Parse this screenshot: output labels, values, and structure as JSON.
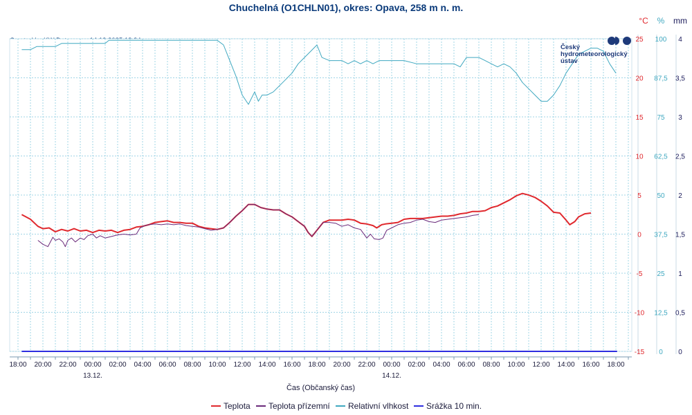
{
  "chart_data": {
    "type": "line",
    "title": "Chuchelná (O1CHLN01), okres: Opava, 258 m n. m.",
    "credit": "Created by KW Data s.r.o., 14.12.2025 18:24",
    "xlabel": "Čas (Občanský čas)",
    "x_ticks": [
      "18:00",
      "20:00",
      "22:00",
      "00:00",
      "02:00",
      "04:00",
      "06:00",
      "08:00",
      "10:00",
      "12:00",
      "14:00",
      "16:00",
      "18:00",
      "20:00",
      "22:00",
      "00:00",
      "02:00",
      "04:00",
      "06:00",
      "08:00",
      "10:00",
      "12:00",
      "14:00",
      "16:00",
      "18:00"
    ],
    "date_labels": [
      {
        "label": "13.12.",
        "hour": 6
      },
      {
        "label": "14.12.",
        "hour": 30
      }
    ],
    "x_range_hours": [
      0,
      49
    ],
    "axes": {
      "temperature": {
        "unit": "°C",
        "range": [
          -15,
          25
        ],
        "ticks": [
          25,
          20,
          15,
          10,
          5,
          0,
          -5,
          -10,
          -15
        ],
        "color": "#e0282d"
      },
      "humidity": {
        "unit": "%",
        "range": [
          0,
          100
        ],
        "ticks": [
          "100",
          "87,5",
          "75",
          "62,5",
          "50",
          "37,5",
          "25",
          "12,5",
          "0"
        ],
        "color": "#3fa8c0"
      },
      "precipitation": {
        "unit": "mm",
        "range": [
          0,
          4
        ],
        "ticks": [
          "4",
          "3,5",
          "3",
          "2,5",
          "2",
          "1,5",
          "1",
          "0,5",
          "0"
        ],
        "color": "#1a1a5a"
      }
    },
    "series": [
      {
        "name": "Teplota",
        "color": "#e0282d",
        "axis": "temperature",
        "points": [
          [
            0.3,
            2.5
          ],
          [
            1,
            1.9
          ],
          [
            1.6,
            1.0
          ],
          [
            2,
            0.7
          ],
          [
            2.5,
            0.8
          ],
          [
            3,
            0.3
          ],
          [
            3.5,
            0.6
          ],
          [
            4,
            0.4
          ],
          [
            4.5,
            0.7
          ],
          [
            5,
            0.4
          ],
          [
            5.5,
            0.5
          ],
          [
            6,
            0.2
          ],
          [
            6.5,
            0.5
          ],
          [
            7,
            0.4
          ],
          [
            7.5,
            0.5
          ],
          [
            8,
            0.2
          ],
          [
            8.5,
            0.5
          ],
          [
            9,
            0.6
          ],
          [
            9.5,
            0.9
          ],
          [
            10,
            1.0
          ],
          [
            10.5,
            1.2
          ],
          [
            11,
            1.5
          ],
          [
            11.5,
            1.6
          ],
          [
            12,
            1.7
          ],
          [
            12.5,
            1.5
          ],
          [
            13,
            1.5
          ],
          [
            13.5,
            1.4
          ],
          [
            14,
            1.4
          ],
          [
            14.5,
            1.0
          ],
          [
            15,
            0.8
          ],
          [
            15.5,
            0.7
          ],
          [
            16,
            0.6
          ],
          [
            16.5,
            0.8
          ],
          [
            17,
            1.5
          ],
          [
            17.5,
            2.3
          ],
          [
            18,
            3.0
          ],
          [
            18.5,
            3.8
          ],
          [
            19,
            3.8
          ],
          [
            19.5,
            3.4
          ],
          [
            20,
            3.2
          ],
          [
            20.5,
            3.1
          ],
          [
            21,
            3.1
          ],
          [
            21.5,
            2.6
          ],
          [
            22,
            2.2
          ],
          [
            22.5,
            1.6
          ],
          [
            23,
            1.0
          ],
          [
            23.3,
            0.2
          ],
          [
            23.6,
            -0.3
          ],
          [
            24,
            0.5
          ],
          [
            24.5,
            1.5
          ],
          [
            25,
            1.8
          ],
          [
            25.5,
            1.8
          ],
          [
            26,
            1.8
          ],
          [
            26.5,
            1.9
          ],
          [
            27,
            1.8
          ],
          [
            27.5,
            1.4
          ],
          [
            28,
            1.3
          ],
          [
            28.5,
            1.1
          ],
          [
            28.8,
            0.8
          ],
          [
            29.2,
            1.2
          ],
          [
            29.5,
            1.3
          ],
          [
            30,
            1.4
          ],
          [
            30.5,
            1.5
          ],
          [
            31,
            1.9
          ],
          [
            31.5,
            2.0
          ],
          [
            32,
            2.0
          ],
          [
            32.5,
            2.0
          ],
          [
            33,
            2.1
          ],
          [
            33.5,
            2.2
          ],
          [
            34,
            2.3
          ],
          [
            34.5,
            2.3
          ],
          [
            35,
            2.4
          ],
          [
            35.5,
            2.6
          ],
          [
            36,
            2.7
          ],
          [
            36.5,
            2.9
          ],
          [
            37,
            2.9
          ],
          [
            37.5,
            3.0
          ],
          [
            38,
            3.4
          ],
          [
            38.5,
            3.6
          ],
          [
            39,
            4.0
          ],
          [
            39.5,
            4.4
          ],
          [
            40,
            4.9
          ],
          [
            40.5,
            5.2
          ],
          [
            41,
            5.0
          ],
          [
            41.5,
            4.7
          ],
          [
            42,
            4.2
          ],
          [
            42.5,
            3.6
          ],
          [
            43,
            2.8
          ],
          [
            43.5,
            2.7
          ],
          [
            44,
            1.8
          ],
          [
            44.3,
            1.2
          ],
          [
            44.7,
            1.6
          ],
          [
            45,
            2.2
          ],
          [
            45.5,
            2.6
          ],
          [
            46,
            2.7
          ]
        ]
      },
      {
        "name": "Teplota přízemní",
        "color": "#6a2a7a",
        "axis": "temperature",
        "points": [
          [
            1.6,
            -0.8
          ],
          [
            2,
            -1.3
          ],
          [
            2.4,
            -1.6
          ],
          [
            2.8,
            -0.4
          ],
          [
            3,
            -0.8
          ],
          [
            3.3,
            -0.6
          ],
          [
            3.6,
            -1.0
          ],
          [
            3.8,
            -1.6
          ],
          [
            4,
            -0.8
          ],
          [
            4.3,
            -0.5
          ],
          [
            4.6,
            -1.0
          ],
          [
            5,
            -0.5
          ],
          [
            5.3,
            -0.7
          ],
          [
            5.6,
            -0.2
          ],
          [
            6,
            0.0
          ],
          [
            6.3,
            -0.5
          ],
          [
            6.6,
            -0.2
          ],
          [
            7,
            -0.5
          ],
          [
            7.5,
            -0.3
          ],
          [
            8,
            -0.1
          ],
          [
            8.5,
            0.0
          ],
          [
            9,
            -0.1
          ],
          [
            9.5,
            0.0
          ],
          [
            9.8,
            0.8
          ],
          [
            10.2,
            1.1
          ],
          [
            10.5,
            1.2
          ],
          [
            11,
            1.3
          ],
          [
            11.5,
            1.2
          ],
          [
            12,
            1.3
          ],
          [
            12.5,
            1.2
          ],
          [
            13,
            1.3
          ],
          [
            13.5,
            1.1
          ],
          [
            14,
            1.0
          ],
          [
            14.5,
            0.9
          ],
          [
            15,
            0.7
          ],
          [
            15.5,
            0.5
          ],
          [
            16,
            0.6
          ],
          [
            16.5,
            0.8
          ],
          [
            17,
            1.5
          ],
          [
            17.5,
            2.3
          ],
          [
            18,
            3.0
          ],
          [
            18.5,
            3.8
          ],
          [
            19,
            3.8
          ],
          [
            19.5,
            3.4
          ],
          [
            20,
            3.2
          ],
          [
            20.5,
            3.1
          ],
          [
            21,
            3.1
          ],
          [
            21.5,
            2.6
          ],
          [
            22,
            2.2
          ],
          [
            22.5,
            1.6
          ],
          [
            23,
            1.0
          ],
          [
            23.3,
            0.2
          ],
          [
            23.6,
            -0.3
          ],
          [
            24,
            0.5
          ],
          [
            24.5,
            1.5
          ],
          [
            25,
            1.5
          ],
          [
            25.5,
            1.4
          ],
          [
            26,
            1.0
          ],
          [
            26.5,
            1.2
          ],
          [
            27,
            0.8
          ],
          [
            27.5,
            0.6
          ],
          [
            28,
            -0.5
          ],
          [
            28.3,
            0.0
          ],
          [
            28.6,
            -0.6
          ],
          [
            29,
            -0.7
          ],
          [
            29.3,
            -0.5
          ],
          [
            29.6,
            0.5
          ],
          [
            30,
            0.8
          ],
          [
            30.5,
            1.2
          ],
          [
            31,
            1.4
          ],
          [
            31.5,
            1.5
          ],
          [
            32,
            1.8
          ],
          [
            32.5,
            1.9
          ],
          [
            33,
            1.6
          ],
          [
            33.5,
            1.5
          ],
          [
            34,
            1.8
          ],
          [
            34.5,
            1.9
          ],
          [
            35,
            2.0
          ],
          [
            35.5,
            2.1
          ],
          [
            36,
            2.2
          ],
          [
            36.5,
            2.4
          ],
          [
            37,
            2.5
          ]
        ]
      },
      {
        "name": "Relativní vlhkost",
        "color": "#3fa8c0",
        "axis": "humidity",
        "points": [
          [
            0.3,
            96.5
          ],
          [
            1,
            96.5
          ],
          [
            1.5,
            97.5
          ],
          [
            2,
            97.5
          ],
          [
            3,
            97.5
          ],
          [
            3.5,
            98.5
          ],
          [
            4,
            98.5
          ],
          [
            5,
            98.5
          ],
          [
            6,
            98.5
          ],
          [
            7,
            98.5
          ],
          [
            7.3,
            99.5
          ],
          [
            8,
            99.5
          ],
          [
            9,
            99.5
          ],
          [
            10,
            99.5
          ],
          [
            11,
            99.5
          ],
          [
            12,
            99.5
          ],
          [
            13,
            99.5
          ],
          [
            14,
            99.5
          ],
          [
            15,
            99.5
          ],
          [
            16,
            99.5
          ],
          [
            16.5,
            98
          ],
          [
            17,
            93
          ],
          [
            17.5,
            88
          ],
          [
            18,
            82
          ],
          [
            18.5,
            79
          ],
          [
            19,
            83
          ],
          [
            19.3,
            80
          ],
          [
            19.6,
            82
          ],
          [
            20,
            82
          ],
          [
            20.5,
            83
          ],
          [
            21,
            85
          ],
          [
            21.5,
            87
          ],
          [
            22,
            89
          ],
          [
            22.5,
            92
          ],
          [
            23,
            94
          ],
          [
            23.5,
            96
          ],
          [
            24,
            98
          ],
          [
            24.4,
            94
          ],
          [
            25,
            93
          ],
          [
            25.5,
            93
          ],
          [
            26,
            93
          ],
          [
            26.5,
            92
          ],
          [
            27,
            93
          ],
          [
            27.5,
            92
          ],
          [
            28,
            93
          ],
          [
            28.5,
            92
          ],
          [
            29,
            93
          ],
          [
            29.5,
            93
          ],
          [
            30,
            93
          ],
          [
            30.5,
            93
          ],
          [
            31,
            93
          ],
          [
            32,
            92
          ],
          [
            33,
            92
          ],
          [
            34,
            92
          ],
          [
            35,
            92
          ],
          [
            35.5,
            91
          ],
          [
            36,
            94
          ],
          [
            36.5,
            94
          ],
          [
            37,
            94
          ],
          [
            37.5,
            93
          ],
          [
            38,
            92
          ],
          [
            38.5,
            91
          ],
          [
            39,
            92
          ],
          [
            39.5,
            91
          ],
          [
            40,
            89
          ],
          [
            40.5,
            86
          ],
          [
            41,
            84
          ],
          [
            41.5,
            82
          ],
          [
            42,
            80
          ],
          [
            42.5,
            80
          ],
          [
            43,
            82
          ],
          [
            43.5,
            85
          ],
          [
            44,
            89
          ],
          [
            44.5,
            92
          ],
          [
            45,
            95
          ],
          [
            45.5,
            96
          ],
          [
            46,
            97
          ],
          [
            46.5,
            97
          ],
          [
            47,
            96
          ],
          [
            47.5,
            92
          ],
          [
            48,
            89
          ]
        ]
      },
      {
        "name": "Srážka 10 min.",
        "color": "#2d2de0",
        "axis": "precipitation",
        "points": [
          [
            0.3,
            0
          ],
          [
            48.1,
            0
          ]
        ]
      }
    ],
    "legend": [
      "Teplota",
      "Teplota přízemní",
      "Relativní vlhkost",
      "Srážka 10 min."
    ],
    "logo_text": [
      "Český",
      "hydrometeorologický",
      "ústav"
    ]
  }
}
